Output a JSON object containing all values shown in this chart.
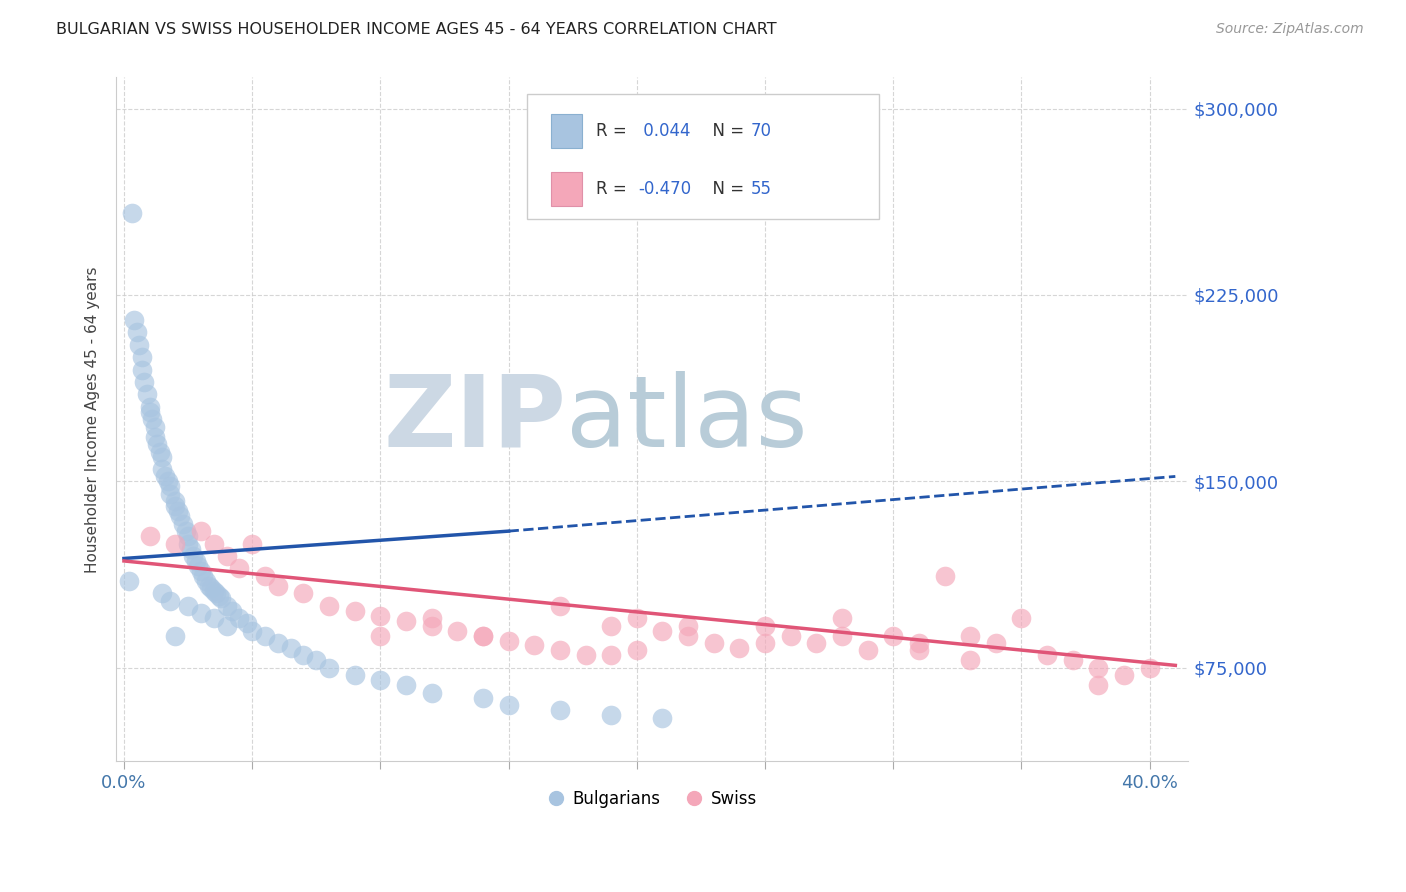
{
  "title": "BULGARIAN VS SWISS HOUSEHOLDER INCOME AGES 45 - 64 YEARS CORRELATION CHART",
  "source": "Source: ZipAtlas.com",
  "ylabel": "Householder Income Ages 45 - 64 years",
  "ylim": [
    37500,
    312500
  ],
  "xlim": [
    -0.3,
    41.5
  ],
  "yticks": [
    75000,
    150000,
    225000,
    300000
  ],
  "ytick_labels": [
    "$75,000",
    "$150,000",
    "$225,000",
    "$300,000"
  ],
  "xticks": [
    0.0,
    5.0,
    10.0,
    15.0,
    20.0,
    25.0,
    30.0,
    35.0,
    40.0
  ],
  "xtick_labels_show": [
    "0.0%",
    "",
    "",
    "",
    "",
    "",
    "",
    "",
    "40.0%"
  ],
  "bg_color": "#ffffff",
  "grid_color": "#cccccc",
  "bulgarians_color": "#a8c4e0",
  "swiss_color": "#f4a7b9",
  "blue_line_color": "#2255aa",
  "pink_line_color": "#e05577",
  "watermark_zip_color": "#cdd9e5",
  "watermark_atlas_color": "#c5d5e2",
  "legend_R1_label": "R =",
  "legend_R1_val": "0.044",
  "legend_N1_label": "N =",
  "legend_N1_val": "70",
  "legend_R2_label": "R =",
  "legend_R2_val": "-0.470",
  "legend_N2_label": "N =",
  "legend_N2_val": "55",
  "bulgarians_x": [
    0.2,
    0.3,
    0.4,
    0.5,
    0.6,
    0.7,
    0.7,
    0.8,
    0.9,
    1.0,
    1.0,
    1.1,
    1.2,
    1.2,
    1.3,
    1.4,
    1.5,
    1.5,
    1.6,
    1.7,
    1.8,
    1.8,
    2.0,
    2.0,
    2.1,
    2.2,
    2.3,
    2.4,
    2.5,
    2.5,
    2.6,
    2.7,
    2.8,
    2.9,
    3.0,
    3.1,
    3.2,
    3.3,
    3.4,
    3.5,
    3.6,
    3.7,
    3.8,
    4.0,
    4.2,
    4.5,
    4.8,
    5.0,
    5.5,
    6.0,
    6.5,
    7.0,
    7.5,
    8.0,
    9.0,
    10.0,
    11.0,
    12.0,
    14.0,
    15.0,
    17.0,
    19.0,
    21.0,
    3.0,
    3.5,
    4.0,
    2.0,
    1.5,
    1.8,
    2.5
  ],
  "bulgarians_y": [
    110000,
    258000,
    215000,
    210000,
    205000,
    200000,
    195000,
    190000,
    185000,
    180000,
    178000,
    175000,
    172000,
    168000,
    165000,
    162000,
    160000,
    155000,
    152000,
    150000,
    148000,
    145000,
    142000,
    140000,
    138000,
    136000,
    133000,
    130000,
    128000,
    125000,
    123000,
    120000,
    118000,
    116000,
    114000,
    112000,
    110000,
    108000,
    107000,
    106000,
    105000,
    104000,
    103000,
    100000,
    98000,
    95000,
    93000,
    90000,
    88000,
    85000,
    83000,
    80000,
    78000,
    75000,
    72000,
    70000,
    68000,
    65000,
    63000,
    60000,
    58000,
    56000,
    55000,
    97000,
    95000,
    92000,
    88000,
    105000,
    102000,
    100000
  ],
  "swiss_x": [
    1.0,
    2.0,
    3.0,
    3.5,
    4.0,
    4.5,
    5.0,
    5.5,
    6.0,
    7.0,
    8.0,
    9.0,
    10.0,
    11.0,
    12.0,
    13.0,
    14.0,
    15.0,
    16.0,
    17.0,
    18.0,
    19.0,
    20.0,
    21.0,
    22.0,
    23.0,
    24.0,
    25.0,
    26.0,
    27.0,
    28.0,
    29.0,
    30.0,
    31.0,
    32.0,
    33.0,
    34.0,
    35.0,
    36.0,
    37.0,
    38.0,
    39.0,
    40.0,
    20.0,
    22.0,
    25.0,
    28.0,
    17.0,
    19.0,
    10.0,
    12.0,
    14.0,
    31.0,
    33.0,
    38.0
  ],
  "swiss_y": [
    128000,
    125000,
    130000,
    125000,
    120000,
    115000,
    125000,
    112000,
    108000,
    105000,
    100000,
    98000,
    96000,
    94000,
    92000,
    90000,
    88000,
    86000,
    84000,
    82000,
    80000,
    80000,
    95000,
    90000,
    88000,
    85000,
    83000,
    92000,
    88000,
    85000,
    95000,
    82000,
    88000,
    82000,
    112000,
    88000,
    85000,
    95000,
    80000,
    78000,
    75000,
    72000,
    75000,
    82000,
    92000,
    85000,
    88000,
    100000,
    92000,
    88000,
    95000,
    88000,
    85000,
    78000,
    68000
  ],
  "blue_line_x0": 0.0,
  "blue_line_x1": 15.0,
  "blue_line_y0": 119000,
  "blue_line_y1": 130000,
  "blue_dash_x0": 15.0,
  "blue_dash_x1": 41.0,
  "blue_dash_y0": 130000,
  "blue_dash_y1": 152000,
  "pink_line_x0": 0.0,
  "pink_line_x1": 41.0,
  "pink_line_y0": 118000,
  "pink_line_y1": 76000
}
